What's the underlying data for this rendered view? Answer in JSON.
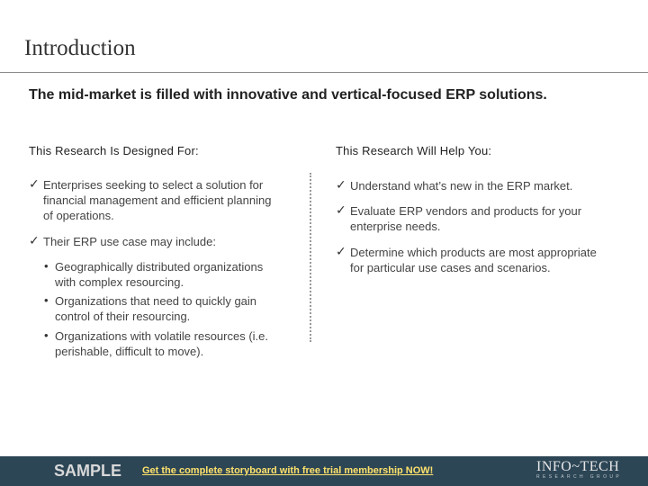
{
  "slide": {
    "title": "Introduction",
    "headline": "The mid-market is filled with innovative and vertical-focused ERP solutions."
  },
  "left_column": {
    "heading": "This Research Is Designed For:",
    "items": [
      {
        "lines": [
          "Enterprises seeking to select a solution for",
          "financial management and efficient planning",
          "of operations."
        ]
      },
      {
        "lines": [
          "Their ERP use case may include:"
        ]
      }
    ],
    "bullets": [
      {
        "lines": [
          "Geographically distributed organizations",
          "with complex resourcing."
        ]
      },
      {
        "lines": [
          "Organizations that need to quickly gain",
          "control of their resourcing."
        ]
      },
      {
        "lines": [
          "Organizations with volatile resources (i.e.",
          "perishable, difficult to move)."
        ]
      }
    ]
  },
  "right_column": {
    "heading": "This Research Will Help You:",
    "items": [
      {
        "lines": [
          "Understand what’s new in the ERP market."
        ]
      },
      {
        "lines": [
          "Evaluate ERP vendors and products for your",
          "enterprise needs."
        ]
      },
      {
        "lines": [
          "Determine which products are most appropriate",
          "for particular use cases and scenarios."
        ]
      }
    ]
  },
  "icons": {
    "check": "✓",
    "bullet": "•"
  },
  "footer": {
    "sample_label": "SAMPLE",
    "cta_text": "Get the complete storyboard with free trial membership NOW!",
    "logo_text": "INFO~TECH",
    "logo_sub": "RESEARCH GROUP",
    "background_color": "#2d4656",
    "cta_color": "#ffe26b"
  }
}
